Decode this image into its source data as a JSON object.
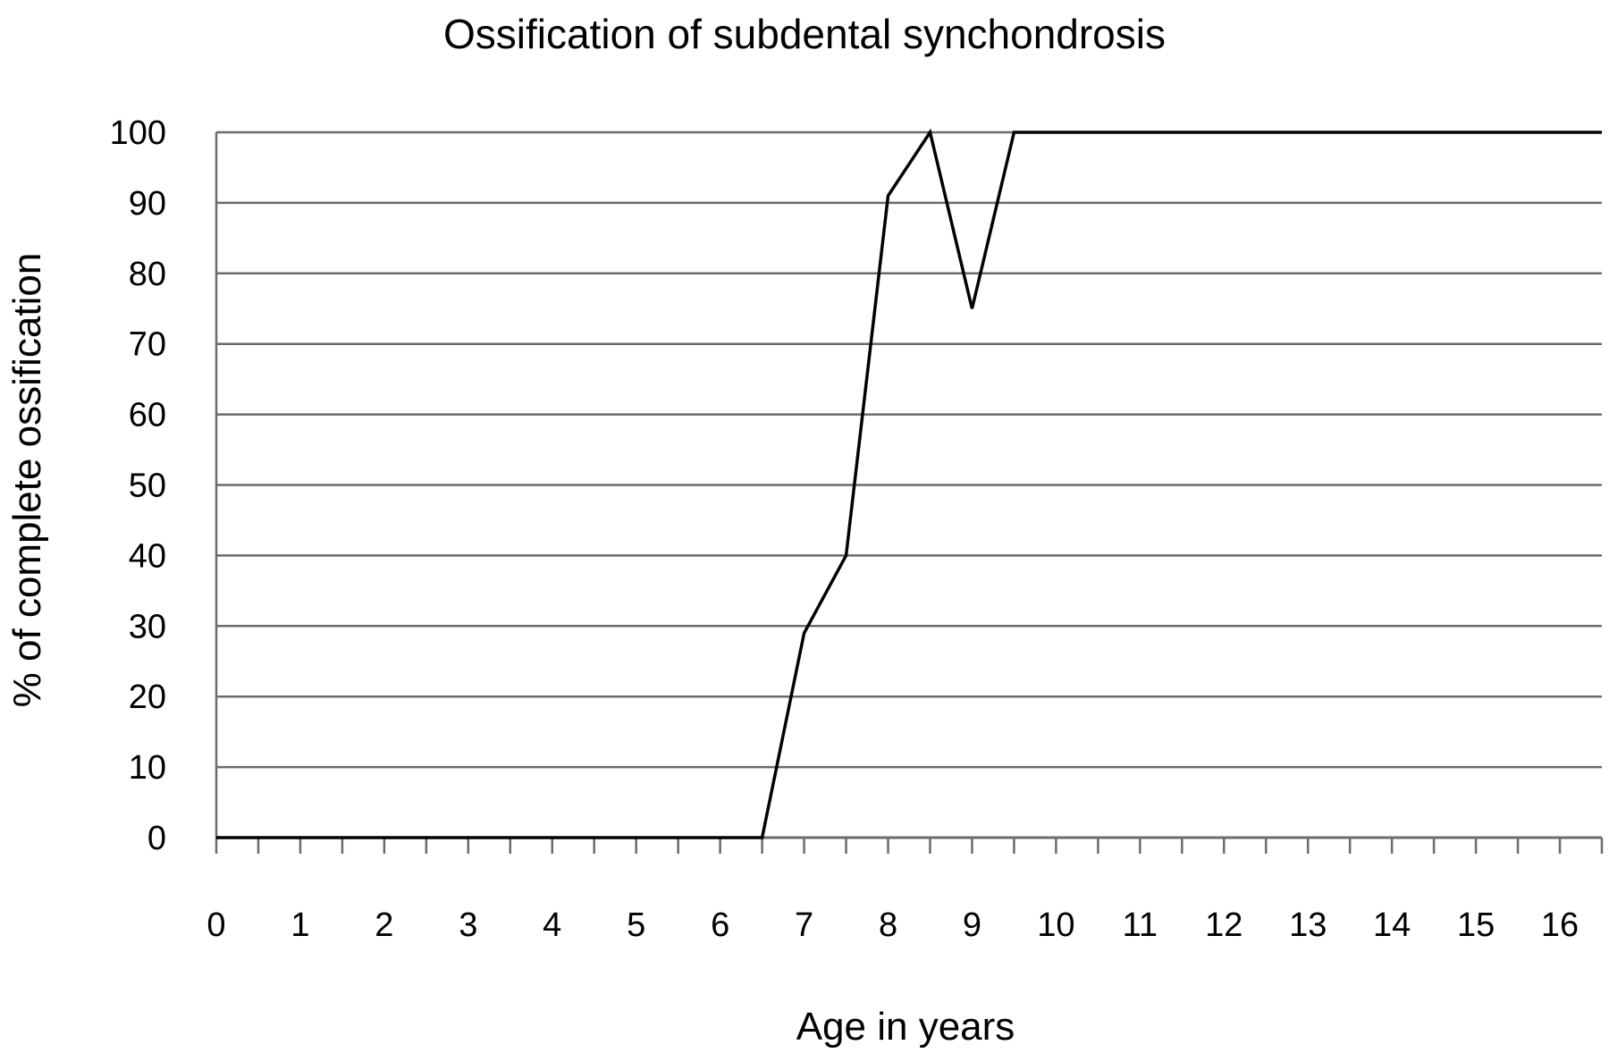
{
  "chart_data": {
    "type": "line",
    "title": "Ossification of subdental  synchondrosis",
    "xlabel": "Age in years",
    "ylabel": "% of complete ossification",
    "xlim": [
      0,
      16.5
    ],
    "ylim": [
      0,
      100
    ],
    "x_ticks": [
      "0",
      "1",
      "2",
      "3",
      "4",
      "5",
      "6",
      "7",
      "8",
      "9",
      "10",
      "11",
      "12",
      "13",
      "14",
      "15",
      "16"
    ],
    "y_ticks": [
      "0",
      "10",
      "20",
      "30",
      "40",
      "50",
      "60",
      "70",
      "80",
      "90",
      "100"
    ],
    "grid": "horizontal",
    "legend": "none",
    "line_color": "#000000",
    "grid_color": "#6b6b6b",
    "series": [
      {
        "x": [
          0,
          0.5,
          1,
          1.5,
          2,
          2.5,
          3,
          3.5,
          4,
          4.5,
          5,
          5.5,
          6,
          6.5,
          7,
          7.5,
          8,
          8.5,
          9,
          9.5,
          10,
          10.5,
          11,
          11.5,
          12,
          12.5,
          13,
          13.5,
          14,
          14.5,
          15,
          15.5,
          16,
          16.5
        ],
        "y": [
          0,
          0,
          0,
          0,
          0,
          0,
          0,
          0,
          0,
          0,
          0,
          0,
          0,
          0,
          29,
          40,
          91,
          100,
          75,
          100,
          100,
          100,
          100,
          100,
          100,
          100,
          100,
          100,
          100,
          100,
          100,
          100,
          100,
          100
        ]
      }
    ]
  }
}
